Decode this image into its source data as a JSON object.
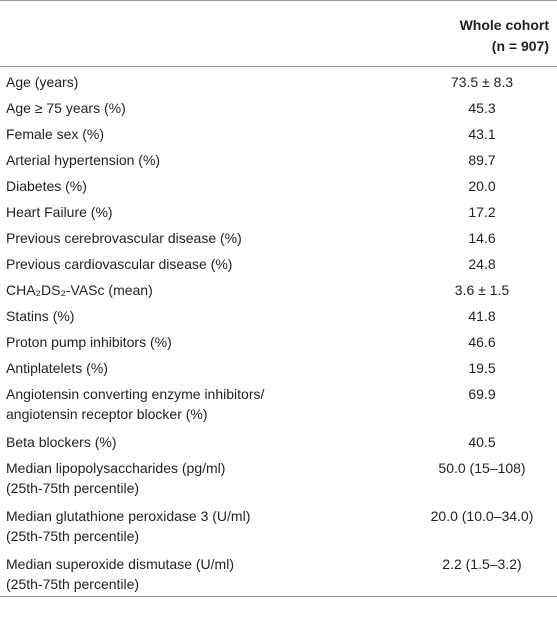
{
  "table": {
    "header": [
      "",
      [
        "Whole cohort",
        "(n = 907)"
      ]
    ],
    "rows": [
      [
        [
          "Age (years)"
        ],
        "73.5 ± 8.3"
      ],
      [
        [
          "Age ≥ 75 years (%)"
        ],
        "45.3"
      ],
      [
        [
          "Female sex (%)"
        ],
        "43.1"
      ],
      [
        [
          "Arterial hypertension (%)"
        ],
        "89.7"
      ],
      [
        [
          "Diabetes (%)"
        ],
        "20.0"
      ],
      [
        [
          "Heart Failure (%)"
        ],
        "17.2"
      ],
      [
        [
          "Previous cerebrovascular disease (%)"
        ],
        "14.6"
      ],
      [
        [
          "Previous cardiovascular disease (%)"
        ],
        "24.8"
      ],
      [
        [
          "CHA₂DS₂-VASc (mean)"
        ],
        "3.6 ± 1.5"
      ],
      [
        [
          "Statins (%)"
        ],
        "41.8"
      ],
      [
        [
          "Proton pump inhibitors (%)"
        ],
        "46.6"
      ],
      [
        [
          "Antiplatelets (%)"
        ],
        "19.5"
      ],
      [
        [
          "Angiotensin converting enzyme inhibitors/",
          "angiotensin receptor blocker (%)"
        ],
        "69.9"
      ],
      [
        [
          "Beta blockers (%)"
        ],
        "40.5"
      ],
      [
        [
          "Median lipopolysaccharides (pg/ml)",
          "(25th-75th percentile)"
        ],
        "50.0 (15–108)"
      ],
      [
        [
          "Median glutathione peroxidase 3 (U/ml)",
          "(25th-75th percentile)"
        ],
        "20.0 (10.0–34.0)"
      ],
      [
        [
          "Median superoxide dismutase (U/ml)",
          "(25th-75th percentile)"
        ],
        "2.2 (1.5–3.2)"
      ]
    ]
  }
}
